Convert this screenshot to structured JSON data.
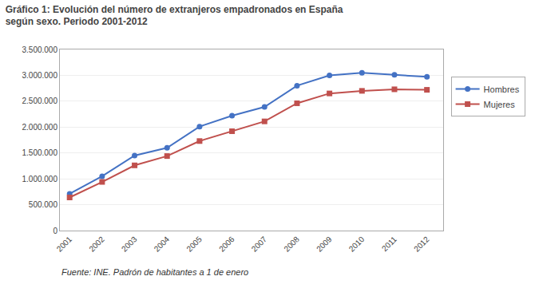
{
  "chart_data": {
    "type": "line",
    "title": "Gráfico 1: Evolución del número de extranjeros empadronados en España\nsegún sexo. Periodo 2001-2012",
    "x": [
      2001,
      2002,
      2003,
      2004,
      2005,
      2006,
      2007,
      2008,
      2009,
      2010,
      2011,
      2012
    ],
    "series": [
      {
        "name": "Hombres",
        "color": "#4472C4",
        "marker": "circle",
        "line_style": "solid",
        "values": [
          710000,
          1050000,
          1450000,
          1600000,
          2010000,
          2220000,
          2390000,
          2800000,
          3000000,
          3050000,
          3010000,
          2970000
        ]
      },
      {
        "name": "Mujeres",
        "color": "#C0504D",
        "marker": "square",
        "line_style": "solid",
        "values": [
          640000,
          940000,
          1260000,
          1440000,
          1730000,
          1920000,
          2110000,
          2460000,
          2650000,
          2700000,
          2730000,
          2720000
        ]
      }
    ],
    "xlim": [
      2000.7,
      2012.5
    ],
    "xticks": [
      2001,
      2002,
      2003,
      2004,
      2005,
      2006,
      2007,
      2008,
      2009,
      2010,
      2011,
      2012
    ],
    "ylim": [
      0,
      3500000
    ],
    "yticks": [
      0,
      {
        "value": 500000,
        "label": "500.000"
      },
      {
        "value": 1000000,
        "label": "1.000.000"
      },
      {
        "value": 1500000,
        "label": "1.500.000"
      },
      {
        "value": 2000000,
        "label": "2.000.000"
      },
      {
        "value": 2500000,
        "label": "2.500.000"
      },
      {
        "value": 3000000,
        "label": "3.000.000"
      },
      {
        "value": 3500000,
        "label": "3.500.000"
      }
    ],
    "grid": "y",
    "legend": "right",
    "annotations": [
      "Fuente: INE. Padrón de habitantes a 1 de enero"
    ]
  }
}
